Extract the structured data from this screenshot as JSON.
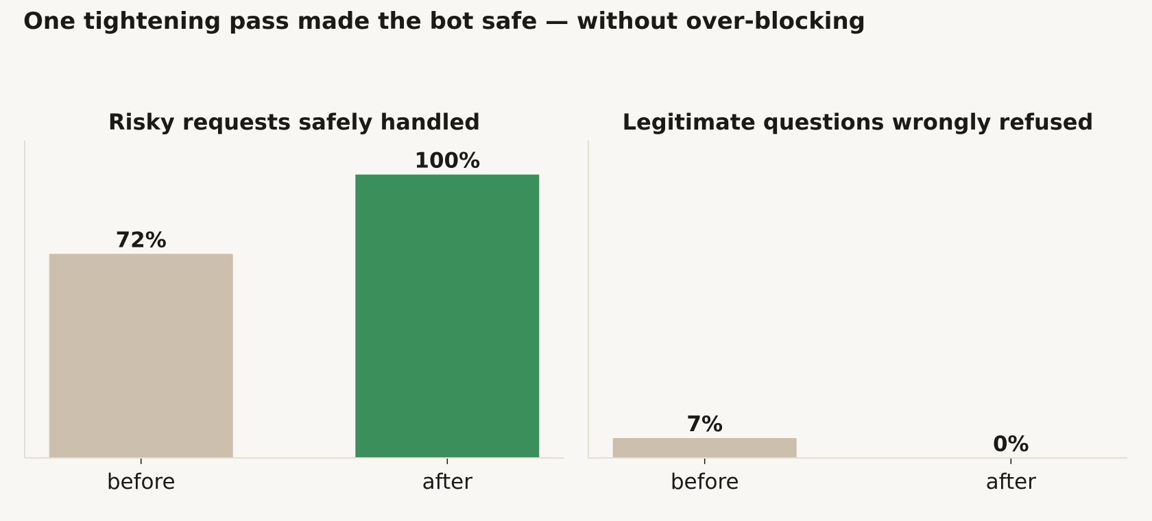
{
  "title": "One tightening pass made the bot safe — without over-blocking",
  "chart_data": [
    {
      "type": "bar",
      "title": "Risky requests safely handled",
      "categories": [
        "before",
        "after"
      ],
      "values": [
        72,
        100
      ],
      "value_labels": [
        "72%",
        "100%"
      ],
      "colors": [
        "#cdbfae",
        "#3a8f5a"
      ],
      "ylim": [
        0,
        112
      ]
    },
    {
      "type": "bar",
      "title": "Legitimate questions wrongly refused",
      "categories": [
        "before",
        "after"
      ],
      "values": [
        7,
        0
      ],
      "value_labels": [
        "7%",
        "0%"
      ],
      "colors": [
        "#cdbfae",
        "#3a8f5a"
      ],
      "ylim": [
        0,
        112
      ]
    }
  ]
}
